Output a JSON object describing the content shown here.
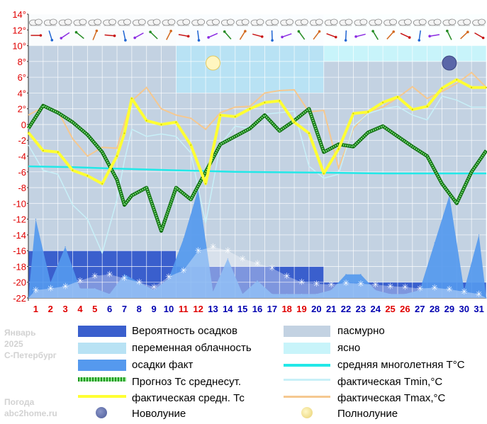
{
  "side": {
    "month": "Январь",
    "year": "2025",
    "city": "С-Петербург",
    "site_line1": "Погода",
    "site_line2": "abc2home.ru"
  },
  "colors": {
    "precip_prob": "#3a5fcd",
    "variable_cloud": "#b8e2f4",
    "precip_fact": "#5599ee",
    "forecast_avg": "#1e9a1e",
    "fact_avg": "#ffff33",
    "overcast": "#c3d2e2",
    "clear": "#c8f4fa",
    "norm": "#22e8e8",
    "tmin": "#c8f0f8",
    "tmax": "#f5c890",
    "weekend": "#e00000",
    "weekday": "#0000b0"
  },
  "legend": [
    {
      "key": "precip_prob",
      "label": "Вероятность осадков"
    },
    {
      "key": "overcast",
      "label": "пасмурно"
    },
    {
      "key": "variable_cloud",
      "label": "переменная облачность"
    },
    {
      "key": "clear",
      "label": "ясно"
    },
    {
      "key": "precip_fact",
      "label": "осадки факт"
    },
    {
      "key": "norm",
      "label": "средняя многолетняя T°C"
    },
    {
      "key": "forecast_avg",
      "label": "Прогноз Тс среднесут."
    },
    {
      "key": "tmin",
      "label": "фактическая Tmin,°С"
    },
    {
      "key": "fact_avg",
      "label": "фактическая средн. Тс"
    },
    {
      "key": "tmax",
      "label": "фактическая Tmax,°С"
    },
    {
      "key": "new_moon",
      "label": "Новолуние"
    },
    {
      "key": "full_moon",
      "label": "Полнолуние"
    }
  ],
  "chart_data": {
    "type": "line",
    "ylim": [
      -22,
      14
    ],
    "y_ticks": [
      "14°",
      "12°",
      "10°",
      "8°",
      "6°",
      "4°",
      "2°",
      "0",
      "-2",
      "-4",
      "-6",
      "-8",
      "-10",
      "-12",
      "-14",
      "-16",
      "-18",
      "-20",
      "-22"
    ],
    "days": [
      "1",
      "2",
      "3",
      "4",
      "5",
      "6",
      "7",
      "8",
      "9",
      "10",
      "11",
      "12",
      "13",
      "14",
      "15",
      "16",
      "17",
      "18",
      "19",
      "20",
      "21",
      "22",
      "23",
      "24",
      "25",
      "26",
      "27",
      "28",
      "29",
      "30",
      "31"
    ],
    "weekend_days": [
      1,
      2,
      3,
      4,
      5,
      11,
      12,
      18,
      19,
      25,
      26
    ],
    "cloud_bands": [
      {
        "from": 0,
        "to": 10,
        "type": "overcast"
      },
      {
        "from": 10,
        "to": 20,
        "type": "variable_cloud"
      },
      {
        "from": 20,
        "to": 31,
        "type": "clear"
      }
    ],
    "precip_probability_bands": [
      {
        "from": 0,
        "to": 10,
        "level": -16
      },
      {
        "from": 10,
        "to": 20,
        "level": -18
      },
      {
        "from": 20,
        "to": 31,
        "level": -20
      }
    ],
    "moon_phases": [
      {
        "type": "full_moon",
        "day": 13
      },
      {
        "type": "new_moon",
        "day": 29
      }
    ],
    "series": [
      {
        "key": "forecast_avg",
        "x": [
          0,
          1,
          2,
          3,
          4,
          5,
          6,
          6.5,
          7,
          8,
          9,
          10,
          11,
          12,
          13,
          14,
          15,
          16,
          17,
          18,
          19,
          20,
          21,
          22,
          23,
          24,
          25,
          26,
          27,
          28,
          29,
          30,
          31
        ],
        "values": [
          -0.5,
          2.4,
          1.5,
          0.3,
          -1.3,
          -3.5,
          -7,
          -10.2,
          -9,
          -8,
          -13.5,
          -8,
          -9.5,
          -6,
          -2.5,
          -1.5,
          -0.5,
          1.2,
          -0.8,
          0.5,
          2,
          -3.5,
          -2.5,
          -2.8,
          -1,
          -0.2,
          -1.5,
          -2.8,
          -4,
          -7.5,
          -10,
          -6,
          -3.3
        ]
      },
      {
        "key": "norm",
        "x": [
          0,
          3,
          6,
          10,
          14,
          20,
          24,
          31
        ],
        "values": [
          -5.3,
          -5.4,
          -5.6,
          -5.8,
          -6.0,
          -6.1,
          -6.2,
          -6.2
        ]
      },
      {
        "key": "tmin",
        "x": [
          0,
          1,
          2,
          3,
          4,
          5,
          6,
          6.5,
          7,
          8,
          9,
          10,
          11,
          12,
          13,
          14,
          15,
          16,
          17,
          18,
          19,
          20,
          21,
          22,
          23,
          24,
          25,
          26,
          27,
          28,
          29,
          30,
          31
        ],
        "values": [
          -2.6,
          -5.8,
          -6.3,
          -10.2,
          -12,
          -16.3,
          -9.5,
          -4.6,
          -0.6,
          -1.5,
          -1.2,
          -1.5,
          -3.6,
          -12.5,
          -2.5,
          -0.2,
          -0.5,
          1.3,
          1.5,
          1.7,
          -5.3,
          -6.8,
          -6.3,
          -0.2,
          1.4,
          2,
          2.3,
          1.2,
          0.6,
          3.6,
          3.1,
          2.2,
          2.2
        ]
      },
      {
        "key": "tmax",
        "x": [
          0,
          1,
          2,
          3,
          4,
          5,
          6,
          6.5,
          7,
          8,
          9,
          10,
          11,
          12,
          13,
          14,
          15,
          16,
          17,
          18,
          19,
          20,
          21,
          22,
          23,
          24,
          25,
          26,
          27,
          28,
          29,
          30,
          31
        ],
        "values": [
          1.2,
          2.2,
          1.7,
          -1.8,
          -4,
          -2.9,
          -3,
          0.2,
          3,
          4.7,
          2,
          1.2,
          0.8,
          -0.6,
          1.5,
          2.2,
          2.3,
          4,
          4.3,
          4.4,
          1.6,
          1.8,
          -5.5,
          -0.5,
          1.6,
          2.2,
          3.4,
          4.8,
          3.3,
          4.2,
          5.2,
          6.6,
          4.7
        ]
      },
      {
        "key": "fact_avg",
        "x": [
          0,
          1,
          2,
          3,
          4,
          5,
          6,
          6.5,
          7,
          8,
          9,
          10,
          11,
          12,
          13,
          14,
          15,
          16,
          17,
          18,
          19,
          20,
          21,
          22,
          23,
          24,
          25,
          26,
          27,
          28,
          29,
          30,
          31
        ],
        "values": [
          -1,
          -3.3,
          -3.5,
          -5.8,
          -6.5,
          -7.5,
          -4,
          -1.1,
          3.3,
          0.5,
          0,
          0.3,
          -2.6,
          -7.5,
          1.2,
          1,
          2,
          2.8,
          3,
          0.3,
          -1.1,
          -6.2,
          -3.1,
          1.4,
          1.6,
          2.8,
          3.5,
          1.9,
          2.3,
          4.6,
          5.7,
          4.7,
          4.7
        ]
      },
      {
        "key": "precip_fact",
        "x": [
          0,
          0.5,
          1.5,
          2.5,
          3.5,
          4.5,
          5.5,
          6.5,
          7.5,
          8.5,
          9.5,
          10.5,
          11.5,
          12.5,
          13.5,
          14.5,
          15.5,
          16.5,
          17.5,
          18.5,
          19.5,
          20.5,
          21.5,
          22.5,
          23.5,
          24.5,
          25.5,
          26.5,
          27.5,
          28.5,
          29.5,
          30.5,
          31
        ],
        "values": [
          -22,
          -12,
          -20,
          -15.5,
          -20.8,
          -20.8,
          -21.5,
          -19,
          -20,
          -21,
          -19.5,
          -14.5,
          -8.2,
          -21.2,
          -17,
          -21.5,
          -19.8,
          -21.5,
          -21.5,
          -21.5,
          -21.5,
          -21,
          -19,
          -19,
          -21,
          -21.5,
          -21.5,
          -21,
          -15,
          -9,
          -21,
          -14,
          -22
        ]
      }
    ],
    "snow_line": {
      "x": [
        1,
        2,
        3,
        4,
        5,
        6,
        7,
        8,
        9,
        10,
        11,
        12,
        13,
        14,
        15,
        16,
        17,
        18,
        19,
        20,
        21,
        22,
        23,
        24,
        25,
        26,
        27,
        28,
        29,
        30,
        31
      ],
      "values": [
        -21,
        -20.8,
        -20.5,
        -19.8,
        -19.2,
        -19,
        -19.5,
        -20,
        -20.6,
        -19.3,
        -18.5,
        -16,
        -15.5,
        -16,
        -17,
        -17.6,
        -18.2,
        -19.2,
        -20,
        -20.2,
        -20.3,
        -20.1,
        -20.2,
        -20.3,
        -20.5,
        -20.6,
        -20.8,
        -20.7,
        -20.9,
        -21.2,
        -21.5
      ]
    }
  }
}
